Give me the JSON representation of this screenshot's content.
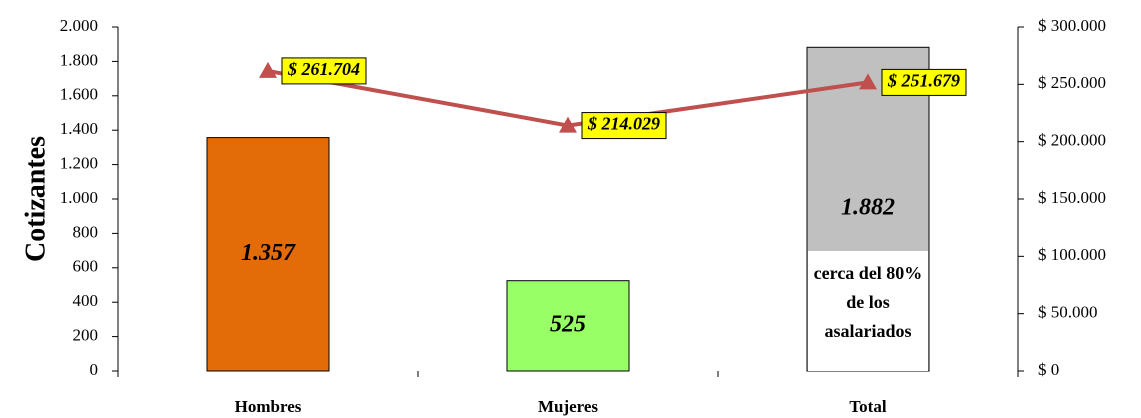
{
  "chart_data": {
    "type": "bar",
    "categories": [
      "Hombres",
      "Mujeres",
      "Total"
    ],
    "y_label": "Cotizantes",
    "series": [
      {
        "type": "bar",
        "colors": [
          "#e36c09",
          "#99ff66",
          "#c0c0c0"
        ],
        "values": [
          1357,
          525,
          1882
        ],
        "value_labels": [
          "1.357",
          "525",
          "1.882"
        ]
      },
      {
        "type": "line",
        "axis": "y2",
        "color": "#c0504d",
        "values": [
          261704,
          214029,
          251679
        ],
        "value_labels": [
          "$ 261.704",
          "$ 214.029",
          "$ 251.679"
        ]
      }
    ],
    "annotation": [
      "cerca del 80%",
      "de los",
      "asalariados"
    ],
    "ylim": [
      0,
      2000
    ],
    "yticks": [
      0,
      200,
      400,
      600,
      800,
      {
        "value": 1000,
        "label": "1.000"
      },
      {
        "value": 1200,
        "label": "1.200"
      },
      {
        "value": 1400,
        "label": "1.400"
      },
      {
        "value": 1600,
        "label": "1.600"
      },
      {
        "value": 1800,
        "label": "1.800"
      },
      {
        "value": 2000,
        "label": "2.000"
      }
    ],
    "y2lim": [
      0,
      300000
    ],
    "y2ticks": [
      {
        "value": 0,
        "label": "$ 0"
      },
      {
        "value": 50000,
        "label": "$ 50.000"
      },
      {
        "value": 100000,
        "label": "$ 100.000"
      },
      {
        "value": 150000,
        "label": "$ 150.000"
      },
      {
        "value": 200000,
        "label": "$ 200.000"
      },
      {
        "value": 250000,
        "label": "$ 250.000"
      },
      {
        "value": 300000,
        "label": "$ 300.000"
      }
    ],
    "grid": false
  }
}
